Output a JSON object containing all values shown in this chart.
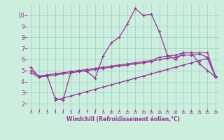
{
  "bg_color": "#cceedd",
  "line_color": "#993399",
  "grid_color": "#99cccc",
  "xlabel": "Windchill (Refroidissement éolien,°C)",
  "xlim": [
    -0.5,
    23.5
  ],
  "ylim": [
    1.5,
    11.0
  ],
  "xticks": [
    0,
    1,
    2,
    3,
    4,
    5,
    6,
    7,
    8,
    9,
    10,
    11,
    12,
    13,
    14,
    15,
    16,
    17,
    18,
    19,
    20,
    21,
    22,
    23
  ],
  "yticks": [
    2,
    3,
    4,
    5,
    6,
    7,
    8,
    9,
    10
  ],
  "line1_x": [
    0,
    1,
    2,
    3,
    4,
    5,
    6,
    7,
    8,
    9,
    10,
    11,
    12,
    13,
    14,
    15,
    16,
    17,
    18,
    19,
    20,
    21,
    22,
    23
  ],
  "line1_y": [
    5.3,
    4.4,
    4.6,
    2.5,
    2.3,
    4.9,
    5.0,
    4.9,
    4.3,
    6.3,
    7.5,
    8.0,
    9.2,
    10.6,
    10.0,
    10.1,
    8.5,
    6.4,
    6.0,
    6.6,
    6.6,
    5.6,
    5.0,
    4.4
  ],
  "line2_x": [
    0,
    1,
    2,
    3,
    4,
    5,
    6,
    7,
    8,
    9,
    10,
    11,
    12,
    13,
    14,
    15,
    16,
    17,
    18,
    19,
    20,
    21,
    22,
    23
  ],
  "line2_y": [
    5.0,
    4.5,
    4.6,
    4.7,
    4.8,
    4.9,
    5.0,
    5.1,
    5.2,
    5.3,
    5.4,
    5.5,
    5.6,
    5.7,
    5.8,
    5.9,
    6.2,
    6.3,
    6.4,
    6.6,
    6.6,
    6.6,
    6.6,
    4.4
  ],
  "line3_x": [
    0,
    1,
    2,
    3,
    4,
    5,
    6,
    7,
    8,
    9,
    10,
    11,
    12,
    13,
    14,
    15,
    16,
    17,
    18,
    19,
    20,
    21,
    22,
    23
  ],
  "line3_y": [
    4.8,
    4.4,
    4.5,
    4.6,
    4.7,
    4.8,
    4.9,
    5.0,
    5.1,
    5.2,
    5.3,
    5.4,
    5.5,
    5.6,
    5.7,
    5.8,
    6.0,
    6.1,
    6.2,
    6.4,
    6.4,
    6.5,
    6.2,
    4.5
  ],
  "line4_x": [
    3,
    4,
    5,
    6,
    7,
    8,
    9,
    10,
    11,
    12,
    13,
    14,
    15,
    16,
    17,
    18,
    19,
    20,
    21,
    22,
    23
  ],
  "line4_y": [
    2.3,
    2.5,
    2.7,
    2.9,
    3.1,
    3.3,
    3.5,
    3.7,
    3.9,
    4.1,
    4.3,
    4.5,
    4.7,
    4.9,
    5.1,
    5.3,
    5.5,
    5.7,
    5.9,
    6.1,
    4.4
  ]
}
